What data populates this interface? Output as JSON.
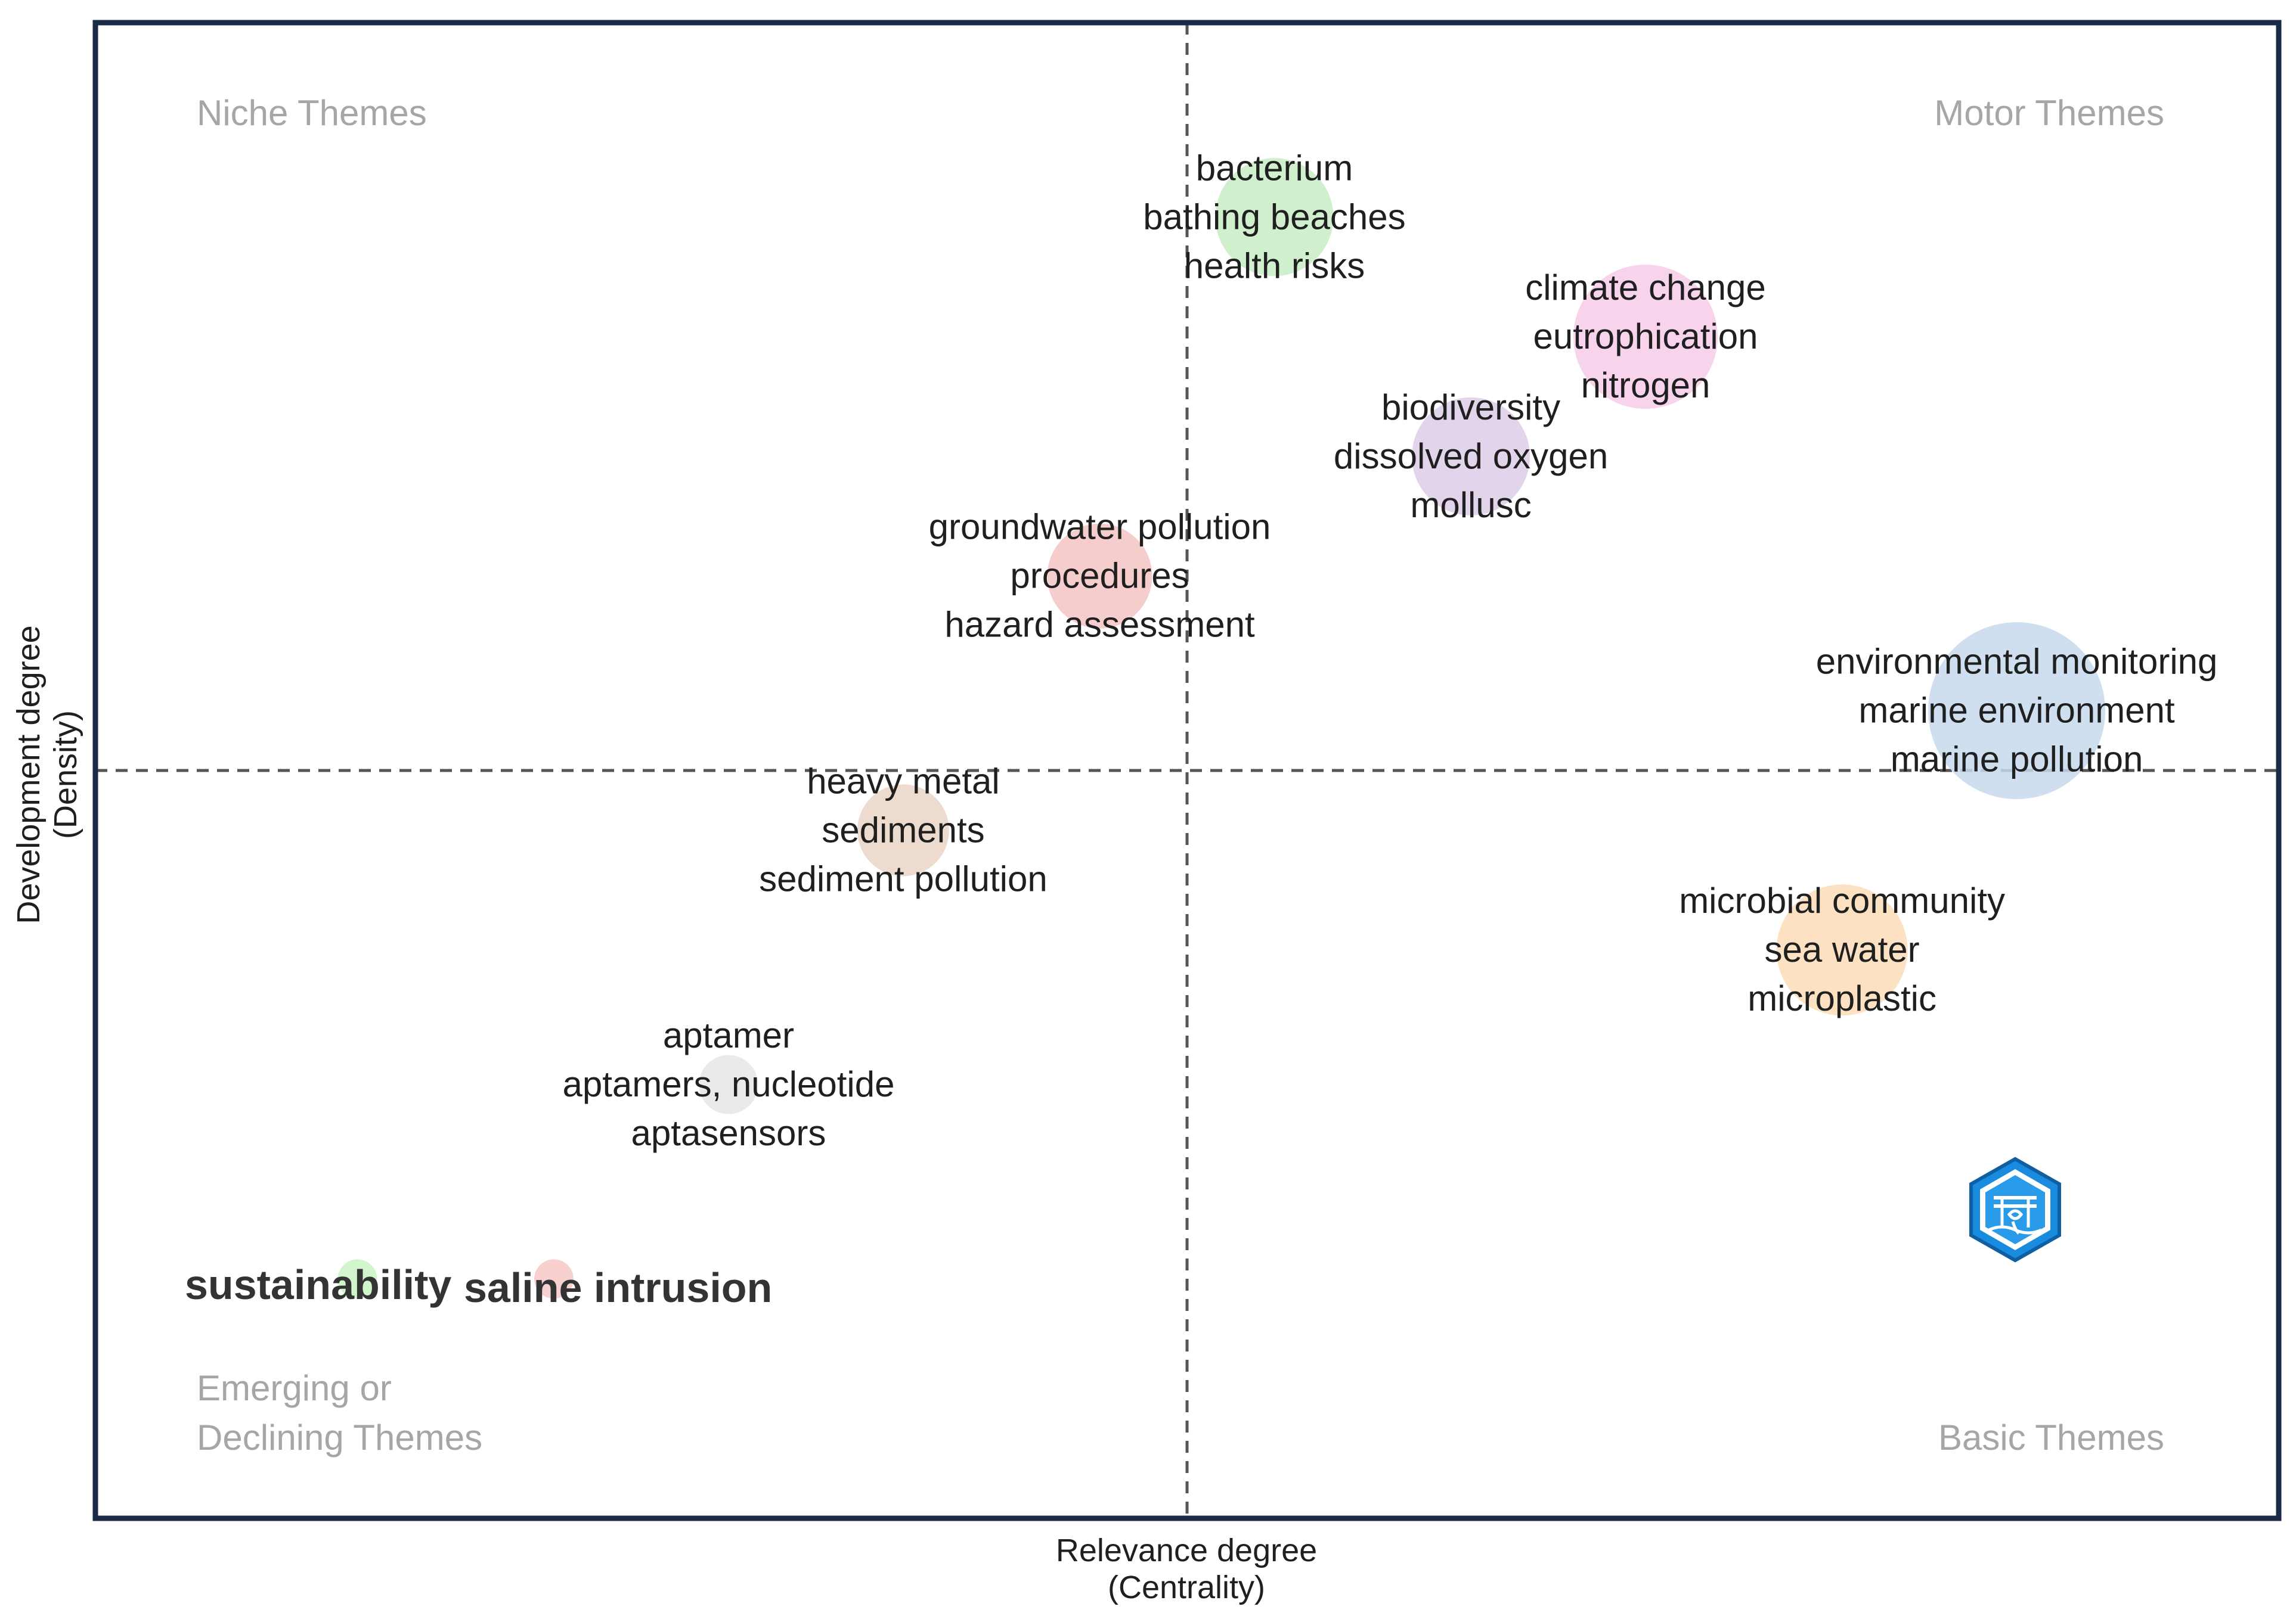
{
  "chart_data": {
    "type": "scatter",
    "subtype": "thematic-map-bubble",
    "title": "",
    "xlabel": "Relevance degree",
    "xlabel_sub": "(Centrality)",
    "ylabel": "Development degree",
    "ylabel_sub": "(Density)",
    "xlim": [
      0,
      100
    ],
    "ylim": [
      0,
      100
    ],
    "quadrant_split": {
      "x": 50,
      "y": 50
    },
    "quadrant_labels": {
      "top_left": [
        "Niche Themes"
      ],
      "top_right": [
        "Motor Themes"
      ],
      "bottom_left": [
        "Emerging or",
        "Declining Themes"
      ],
      "bottom_right": [
        "Basic Themes"
      ]
    },
    "clusters": [
      {
        "id": "bacterium",
        "x": 54,
        "y": 87,
        "size": 18,
        "color": "#c8ecc4",
        "labels": [
          "bacterium",
          "bathing beaches",
          "health risks"
        ]
      },
      {
        "id": "climate-change",
        "x": 71,
        "y": 79,
        "size": 22,
        "color": "#f7cde9",
        "labels": [
          "climate change",
          "eutrophication",
          "nitrogen"
        ]
      },
      {
        "id": "biodiversity",
        "x": 63,
        "y": 71,
        "size": 18,
        "color": "#ddcde8",
        "labels": [
          "biodiversity",
          "dissolved oxygen",
          "mollusc"
        ]
      },
      {
        "id": "groundwater",
        "x": 46,
        "y": 63,
        "size": 16,
        "color": "#f4c4c4",
        "labels": [
          "groundwater pollution",
          "procedures",
          "hazard assessment"
        ]
      },
      {
        "id": "environmental-monitoring",
        "x": 88,
        "y": 54,
        "size": 27,
        "color": "#c8d9ec",
        "labels": [
          "environmental monitoring",
          "marine environment",
          "marine pollution"
        ]
      },
      {
        "id": "heavy-metal",
        "x": 37,
        "y": 46,
        "size": 14,
        "color": "#ebd5c8",
        "labels": [
          "heavy metal",
          "sediments",
          "sediment pollution"
        ]
      },
      {
        "id": "microbial",
        "x": 80,
        "y": 38,
        "size": 20,
        "color": "#fcdcb7",
        "labels": [
          "microbial community",
          "sea water",
          "microplastic"
        ]
      },
      {
        "id": "aptamer",
        "x": 29,
        "y": 29,
        "size": 9,
        "color": "#e6e6e6",
        "labels": [
          "aptamer",
          "aptamers, nucleotide",
          "aptasensors"
        ]
      },
      {
        "id": "sustainability",
        "x": 12,
        "y": 16,
        "size": 6,
        "color": "#c9f5c2",
        "labels": [
          "sustainability"
        ],
        "bold": true
      },
      {
        "id": "saline-intrusion",
        "x": 21,
        "y": 16,
        "size": 6,
        "color": "#f8c8c8",
        "labels": [
          "saline intrusion"
        ],
        "bold": true
      }
    ]
  }
}
